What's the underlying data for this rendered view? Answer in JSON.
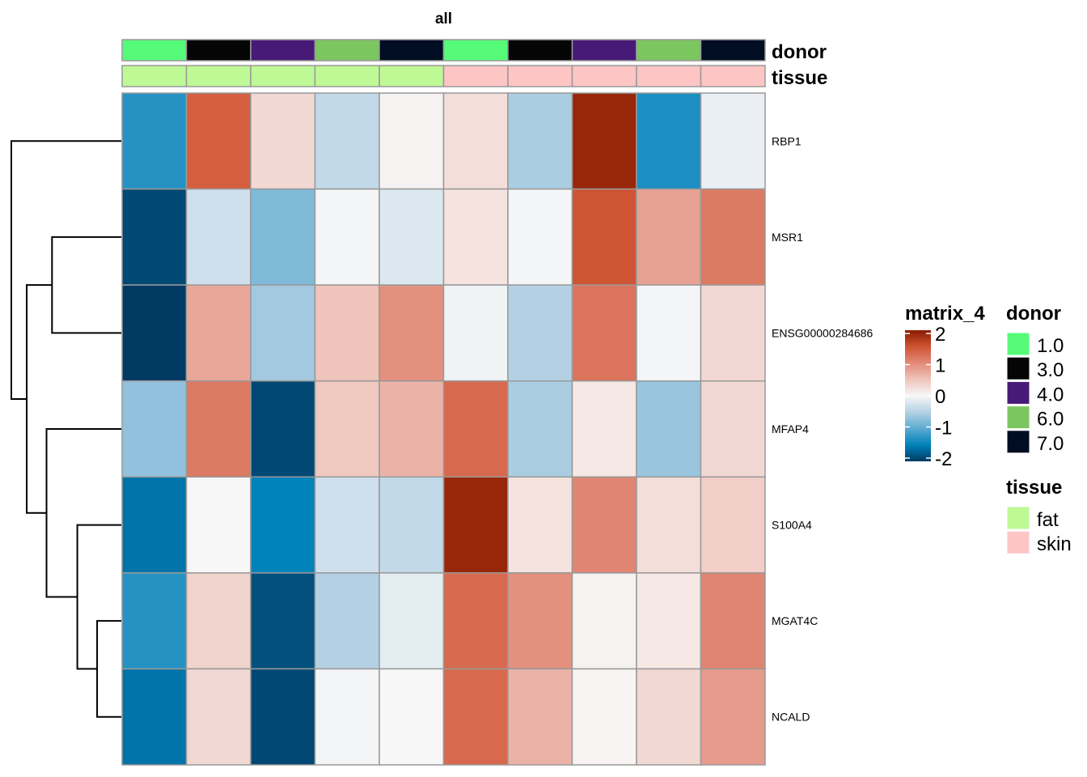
{
  "chart_data": {
    "type": "heatmap",
    "title": "all",
    "rows": [
      "RBP1",
      "MSR1",
      "ENSG00000284686",
      "MFAP4",
      "S100A4",
      "MGAT4C",
      "NCALD"
    ],
    "values": [
      [
        -1.3,
        1.4,
        0.3,
        -0.4,
        0.05,
        0.25,
        -0.55,
        1.9,
        -1.35,
        -0.1
      ],
      [
        -1.9,
        -0.3,
        -0.8,
        -0.02,
        -0.2,
        0.2,
        -0.02,
        1.5,
        0.8,
        1.15
      ],
      [
        -2.1,
        0.75,
        -0.6,
        0.5,
        0.95,
        -0.05,
        -0.5,
        1.2,
        -0.02,
        0.3
      ],
      [
        -0.7,
        1.15,
        -1.9,
        0.45,
        0.65,
        1.3,
        -0.55,
        0.15,
        -0.65,
        0.3
      ],
      [
        -1.6,
        0.0,
        -1.5,
        -0.3,
        -0.4,
        1.9,
        0.2,
        1.05,
        0.25,
        0.4
      ],
      [
        -1.3,
        0.35,
        -1.85,
        -0.5,
        -0.15,
        1.3,
        0.95,
        0.05,
        0.15,
        1.05
      ],
      [
        -1.6,
        0.3,
        -1.9,
        -0.02,
        0.0,
        1.3,
        0.65,
        0.03,
        0.3,
        0.85
      ]
    ],
    "column_annotations": {
      "donor": [
        "1.0",
        "3.0",
        "4.0",
        "6.0",
        "7.0",
        "1.0",
        "3.0",
        "4.0",
        "6.0",
        "7.0"
      ],
      "tissue": [
        "fat",
        "fat",
        "fat",
        "fat",
        "fat",
        "skin",
        "skin",
        "skin",
        "skin",
        "skin"
      ]
    },
    "annotation_names": {
      "donor": "donor",
      "tissue": "tissue"
    },
    "row_dendrogram": [
      {
        "left": "MGAT4C",
        "right": "NCALD",
        "height": 0.22
      },
      {
        "left": "S100A4",
        "right": 0,
        "height": 0.4
      },
      {
        "left": "MFAP4",
        "right": 1,
        "height": 0.68
      },
      {
        "left": "MSR1",
        "right": "ENSG00000284686",
        "height": 0.63
      },
      {
        "left": 3,
        "right": 2,
        "height": 0.86
      },
      {
        "left": "RBP1",
        "right": 4,
        "height": 1.0
      }
    ],
    "color_scale": {
      "title": "matrix_4",
      "range": [
        -2,
        2
      ],
      "ticks": [
        "2",
        "1",
        "0",
        "-1",
        "-2"
      ],
      "stops": [
        [
          -2,
          "#013a63"
        ],
        [
          -1.5,
          "#0082ba"
        ],
        [
          -1,
          "#5caad0"
        ],
        [
          -0.5,
          "#b4d1e4"
        ],
        [
          0,
          "#f7f7f7"
        ],
        [
          0.5,
          "#efc4bb"
        ],
        [
          1,
          "#e28a78"
        ],
        [
          1.5,
          "#cf5432"
        ],
        [
          2,
          "#8a1c00"
        ]
      ]
    },
    "legends": {
      "donor": {
        "title": "donor",
        "items": [
          {
            "label": "1.0",
            "color": "#55fb78"
          },
          {
            "label": "3.0",
            "color": "#050505"
          },
          {
            "label": "4.0",
            "color": "#471a78"
          },
          {
            "label": "6.0",
            "color": "#7bc65f"
          },
          {
            "label": "7.0",
            "color": "#010d22"
          }
        ]
      },
      "tissue": {
        "title": "tissue",
        "items": [
          {
            "label": "fat",
            "color": "#bff996"
          },
          {
            "label": "skin",
            "color": "#fec5c5"
          }
        ]
      }
    }
  }
}
